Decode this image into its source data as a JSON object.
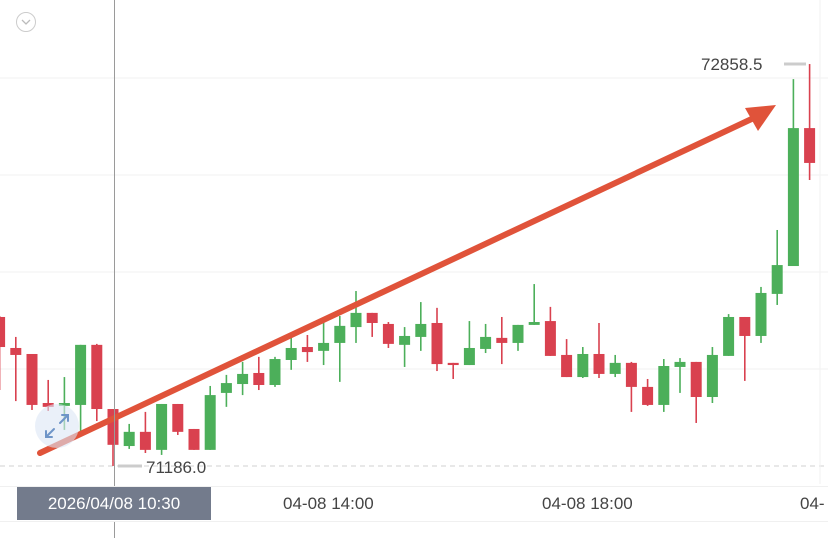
{
  "chart_data": {
    "type": "candlestick",
    "title": "",
    "interval_minutes": 15,
    "ylim": [
      71111,
      73125
    ],
    "grid": true,
    "colors": {
      "up": "#4caf5a",
      "down": "#d9414f",
      "trend_arrow": "#e0533a",
      "crosshair_label_bg": "#737b8c"
    },
    "x_tick_labels": [
      "04-08 14:00",
      "04-08 18:00",
      "04-"
    ],
    "crosshair_time": "2026/04/08 10:30",
    "max_label": "72858.5",
    "min_label": "71186.0",
    "candles": [
      {
        "t": "08:45",
        "o": 71806,
        "h": 71810,
        "l": 71502,
        "c": 71681
      },
      {
        "t": "09:00",
        "o": 71677,
        "h": 71723,
        "l": 71456,
        "c": 71648
      },
      {
        "t": "09:15",
        "o": 71652,
        "h": 71652,
        "l": 71419,
        "c": 71440
      },
      {
        "t": "09:30",
        "o": 71448,
        "h": 71544,
        "l": 71415,
        "c": 71432
      },
      {
        "t": "09:45",
        "o": 71436,
        "h": 71556,
        "l": 71336,
        "c": 71448
      },
      {
        "t": "10:00",
        "o": 71440,
        "h": 71690,
        "l": 71328,
        "c": 71690
      },
      {
        "t": "10:15",
        "o": 71690,
        "h": 71694,
        "l": 71373,
        "c": 71423
      },
      {
        "t": "10:30",
        "o": 71423,
        "h": 71423,
        "l": 71186,
        "c": 71274
      },
      {
        "t": "10:45",
        "o": 71269,
        "h": 71361,
        "l": 71257,
        "c": 71328
      },
      {
        "t": "11:00",
        "o": 71328,
        "h": 71411,
        "l": 71240,
        "c": 71253
      },
      {
        "t": "11:15",
        "o": 71253,
        "h": 71444,
        "l": 71232,
        "c": 71444
      },
      {
        "t": "11:30",
        "o": 71444,
        "h": 71444,
        "l": 71315,
        "c": 71328
      },
      {
        "t": "11:45",
        "o": 71340,
        "h": 71340,
        "l": 71253,
        "c": 71253
      },
      {
        "t": "12:00",
        "o": 71253,
        "h": 71519,
        "l": 71253,
        "c": 71481
      },
      {
        "t": "12:15",
        "o": 71490,
        "h": 71565,
        "l": 71432,
        "c": 71531
      },
      {
        "t": "12:30",
        "o": 71527,
        "h": 71619,
        "l": 71481,
        "c": 71569
      },
      {
        "t": "12:45",
        "o": 71573,
        "h": 71640,
        "l": 71502,
        "c": 71523
      },
      {
        "t": "13:00",
        "o": 71523,
        "h": 71640,
        "l": 71515,
        "c": 71631
      },
      {
        "t": "13:15",
        "o": 71627,
        "h": 71719,
        "l": 71586,
        "c": 71677
      },
      {
        "t": "13:30",
        "o": 71681,
        "h": 71731,
        "l": 71619,
        "c": 71660
      },
      {
        "t": "13:45",
        "o": 71665,
        "h": 71785,
        "l": 71606,
        "c": 71698
      },
      {
        "t": "14:00",
        "o": 71698,
        "h": 71810,
        "l": 71536,
        "c": 71769
      },
      {
        "t": "14:15",
        "o": 71764,
        "h": 71914,
        "l": 71698,
        "c": 71823
      },
      {
        "t": "14:30",
        "o": 71823,
        "h": 71823,
        "l": 71723,
        "c": 71781
      },
      {
        "t": "14:45",
        "o": 71777,
        "h": 71785,
        "l": 71677,
        "c": 71694
      },
      {
        "t": "15:00",
        "o": 71690,
        "h": 71764,
        "l": 71598,
        "c": 71727
      },
      {
        "t": "15:15",
        "o": 71723,
        "h": 71868,
        "l": 71665,
        "c": 71777
      },
      {
        "t": "15:30",
        "o": 71781,
        "h": 71844,
        "l": 71581,
        "c": 71610
      },
      {
        "t": "15:45",
        "o": 71615,
        "h": 71615,
        "l": 71548,
        "c": 71606
      },
      {
        "t": "16:00",
        "o": 71606,
        "h": 71789,
        "l": 71606,
        "c": 71677
      },
      {
        "t": "16:15",
        "o": 71673,
        "h": 71777,
        "l": 71656,
        "c": 71723
      },
      {
        "t": "16:30",
        "o": 71719,
        "h": 71806,
        "l": 71610,
        "c": 71698
      },
      {
        "t": "16:45",
        "o": 71698,
        "h": 71773,
        "l": 71665,
        "c": 71773
      },
      {
        "t": "17:00",
        "o": 71773,
        "h": 71943,
        "l": 71773,
        "c": 71785
      },
      {
        "t": "17:15",
        "o": 71789,
        "h": 71848,
        "l": 71644,
        "c": 71644
      },
      {
        "t": "17:30",
        "o": 71648,
        "h": 71714,
        "l": 71556,
        "c": 71556
      },
      {
        "t": "17:45",
        "o": 71556,
        "h": 71681,
        "l": 71552,
        "c": 71652
      },
      {
        "t": "18:00",
        "o": 71652,
        "h": 71781,
        "l": 71552,
        "c": 71569
      },
      {
        "t": "18:15",
        "o": 71569,
        "h": 71648,
        "l": 71556,
        "c": 71615
      },
      {
        "t": "18:30",
        "o": 71615,
        "h": 71619,
        "l": 71411,
        "c": 71515
      },
      {
        "t": "18:45",
        "o": 71515,
        "h": 71548,
        "l": 71436,
        "c": 71440
      },
      {
        "t": "19:00",
        "o": 71440,
        "h": 71631,
        "l": 71411,
        "c": 71602
      },
      {
        "t": "19:15",
        "o": 71598,
        "h": 71635,
        "l": 71490,
        "c": 71619
      },
      {
        "t": "19:30",
        "o": 71619,
        "h": 71619,
        "l": 71365,
        "c": 71473
      },
      {
        "t": "19:45",
        "o": 71473,
        "h": 71681,
        "l": 71448,
        "c": 71648
      },
      {
        "t": "20:00",
        "o": 71644,
        "h": 71818,
        "l": 71644,
        "c": 71806
      },
      {
        "t": "20:15",
        "o": 71806,
        "h": 71806,
        "l": 71540,
        "c": 71727
      },
      {
        "t": "20:30",
        "o": 71727,
        "h": 71931,
        "l": 71698,
        "c": 71906
      },
      {
        "t": "20:45",
        "o": 71902,
        "h": 72168,
        "l": 71856,
        "c": 72022
      },
      {
        "t": "21:00",
        "o": 72018,
        "h": 72796,
        "l": 72018,
        "c": 72592
      },
      {
        "t": "21:15",
        "o": 72592,
        "h": 72858.5,
        "l": 72376,
        "c": 72447
      }
    ]
  },
  "icons": {
    "collapse": "chevron-down-circle-icon",
    "expand": "expand-arrows-icon"
  }
}
